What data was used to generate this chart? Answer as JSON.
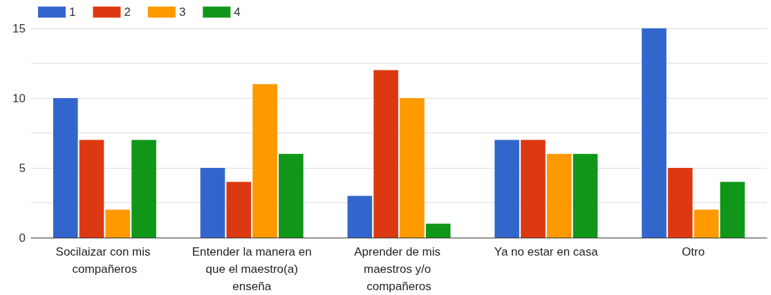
{
  "chart_data": {
    "type": "bar",
    "categories": [
      "Socilaizar con mis compañeros",
      "Entender la manera en que el maestro(a) enseña",
      "Aprender de mis maestros y/o compañeros",
      "Ya no estar en casa",
      "Otro"
    ],
    "series": [
      {
        "name": "1",
        "color": "#3366cc",
        "values": [
          10,
          5,
          3,
          7,
          15
        ]
      },
      {
        "name": "2",
        "color": "#dc3912",
        "values": [
          7,
          4,
          12,
          7,
          5
        ]
      },
      {
        "name": "3",
        "color": "#ff9900",
        "values": [
          2,
          11,
          10,
          6,
          2
        ]
      },
      {
        "name": "4",
        "color": "#109618",
        "values": [
          7,
          6,
          1,
          6,
          4
        ]
      }
    ],
    "ylim": [
      0,
      15
    ],
    "yticks": [
      0,
      {
        "value": 2.5,
        "label": null
      },
      5,
      {
        "value": 7.5,
        "label": null
      },
      10,
      {
        "value": 12.5,
        "label": null
      },
      15
    ],
    "grid": "y",
    "legend": "top left"
  }
}
